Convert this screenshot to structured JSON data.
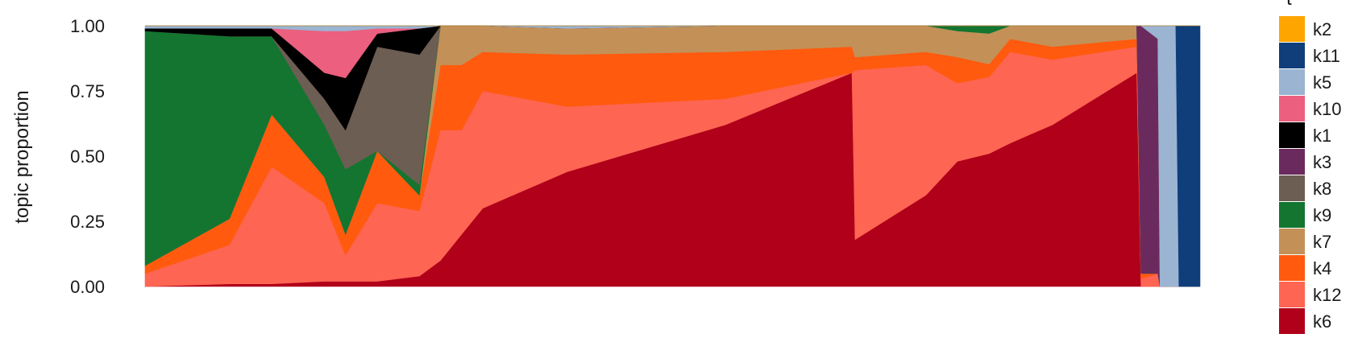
{
  "chart_data": {
    "type": "area",
    "subtype": "stacked-structure-plot",
    "title": "",
    "xlabel": "",
    "ylabel": "topic proportion",
    "ylim": [
      0,
      1
    ],
    "yticks": [
      "0.00",
      "0.25",
      "0.50",
      "0.75",
      "1.00"
    ],
    "grid": false,
    "legend_position": "right",
    "legend_title": "t",
    "legend": [
      {
        "key": "k2",
        "color": "#FFA500"
      },
      {
        "key": "k11",
        "color": "#0F3E7A"
      },
      {
        "key": "k5",
        "color": "#9AB4D2"
      },
      {
        "key": "k10",
        "color": "#EC5F7E"
      },
      {
        "key": "k1",
        "color": "#000000"
      },
      {
        "key": "k3",
        "color": "#6B2A5E"
      },
      {
        "key": "k8",
        "color": "#6C5E52"
      },
      {
        "key": "k9",
        "color": "#137530"
      },
      {
        "key": "k7",
        "color": "#C39158"
      },
      {
        "key": "k4",
        "color": "#FF5A0E"
      },
      {
        "key": "k12",
        "color": "#FF6553"
      },
      {
        "key": "k6",
        "color": "#B0001A"
      }
    ],
    "stack_order": [
      "k6",
      "k12",
      "k4",
      "k7",
      "k9",
      "k8",
      "k3",
      "k1",
      "k10",
      "k5",
      "k11",
      "k2"
    ],
    "x": [
      0,
      0.08,
      0.12,
      0.17,
      0.19,
      0.22,
      0.26,
      0.28,
      0.3,
      0.32,
      0.4,
      0.55,
      0.67,
      0.673,
      0.74,
      0.77,
      0.8,
      0.82,
      0.86,
      0.94,
      0.944,
      0.96,
      0.962,
      0.977,
      0.98,
      1.0
    ],
    "series": [
      {
        "name": "k6",
        "values": [
          0.0,
          0.01,
          0.01,
          0.02,
          0.02,
          0.02,
          0.04,
          0.1,
          0.2,
          0.3,
          0.44,
          0.62,
          0.82,
          0.18,
          0.35,
          0.48,
          0.52,
          0.55,
          0.62,
          0.82,
          0.0,
          0.0,
          0.0,
          0.0,
          0.0,
          0.0
        ]
      },
      {
        "name": "k12",
        "values": [
          0.05,
          0.15,
          0.45,
          0.3,
          0.1,
          0.3,
          0.25,
          0.5,
          0.4,
          0.45,
          0.25,
          0.1,
          0.0,
          0.65,
          0.5,
          0.3,
          0.3,
          0.35,
          0.25,
          0.1,
          0.03,
          0.05,
          0.0,
          0.0,
          0.0,
          0.0
        ]
      },
      {
        "name": "k4",
        "values": [
          0.03,
          0.1,
          0.2,
          0.1,
          0.08,
          0.2,
          0.06,
          0.25,
          0.25,
          0.15,
          0.2,
          0.18,
          0.1,
          0.05,
          0.05,
          0.1,
          0.05,
          0.05,
          0.05,
          0.03,
          0.02,
          0.0,
          0.0,
          0.0,
          0.0,
          0.0
        ]
      },
      {
        "name": "k7",
        "values": [
          0.0,
          0.0,
          0.0,
          0.0,
          0.0,
          0.0,
          0.0,
          0.15,
          0.15,
          0.1,
          0.1,
          0.1,
          0.08,
          0.12,
          0.1,
          0.1,
          0.12,
          0.05,
          0.08,
          0.05,
          0.0,
          0.0,
          0.0,
          0.0,
          0.0,
          0.0
        ]
      },
      {
        "name": "k9",
        "values": [
          0.9,
          0.7,
          0.3,
          0.2,
          0.25,
          0.0,
          0.04,
          0.0,
          0.0,
          0.0,
          0.0,
          0.0,
          0.0,
          0.0,
          0.0,
          0.02,
          0.03,
          0.0,
          0.0,
          0.0,
          0.0,
          0.0,
          0.0,
          0.0,
          0.0,
          0.0
        ]
      },
      {
        "name": "k8",
        "values": [
          0.0,
          0.0,
          0.0,
          0.1,
          0.15,
          0.4,
          0.5,
          0.0,
          0.0,
          0.0,
          0.0,
          0.0,
          0.0,
          0.0,
          0.0,
          0.0,
          0.0,
          0.0,
          0.0,
          0.0,
          0.0,
          0.0,
          0.0,
          0.0,
          0.0,
          0.0
        ]
      },
      {
        "name": "k3",
        "values": [
          0.0,
          0.0,
          0.0,
          0.0,
          0.0,
          0.0,
          0.0,
          0.0,
          0.0,
          0.0,
          0.0,
          0.0,
          0.0,
          0.0,
          0.0,
          0.0,
          0.0,
          0.0,
          0.0,
          0.0,
          0.95,
          0.9,
          0.0,
          0.0,
          0.0,
          0.0
        ]
      },
      {
        "name": "k1",
        "values": [
          0.01,
          0.03,
          0.03,
          0.1,
          0.2,
          0.05,
          0.1,
          0.0,
          0.0,
          0.0,
          0.0,
          0.0,
          0.0,
          0.0,
          0.0,
          0.0,
          0.0,
          0.0,
          0.0,
          0.0,
          0.0,
          0.0,
          0.0,
          0.0,
          0.0,
          0.0
        ]
      },
      {
        "name": "k10",
        "values": [
          0.0,
          0.0,
          0.0,
          0.16,
          0.18,
          0.02,
          0.0,
          0.0,
          0.0,
          0.0,
          0.0,
          0.0,
          0.0,
          0.0,
          0.0,
          0.0,
          0.0,
          0.0,
          0.0,
          0.0,
          0.0,
          0.0,
          0.0,
          0.0,
          0.0,
          0.0
        ]
      },
      {
        "name": "k5",
        "values": [
          0.01,
          0.01,
          0.01,
          0.02,
          0.02,
          0.01,
          0.01,
          0.0,
          0.0,
          0.0,
          0.01,
          0.0,
          0.0,
          0.0,
          0.0,
          0.0,
          0.0,
          0.0,
          0.0,
          0.0,
          0.0,
          0.05,
          1.0,
          1.0,
          0.0,
          0.0
        ]
      },
      {
        "name": "k11",
        "values": [
          0.0,
          0.0,
          0.0,
          0.0,
          0.0,
          0.0,
          0.0,
          0.0,
          0.0,
          0.0,
          0.0,
          0.0,
          0.0,
          0.0,
          0.0,
          0.0,
          0.0,
          0.0,
          0.0,
          0.0,
          0.0,
          0.0,
          0.0,
          0.0,
          1.0,
          1.0
        ]
      },
      {
        "name": "k2",
        "values": [
          0.0,
          0.0,
          0.0,
          0.0,
          0.0,
          0.0,
          0.0,
          0.0,
          0.0,
          0.0,
          0.0,
          0.0,
          0.0,
          0.0,
          0.0,
          0.0,
          0.0,
          0.0,
          0.0,
          0.0,
          0.0,
          0.0,
          0.0,
          0.0,
          0.0,
          0.0
        ]
      }
    ]
  }
}
